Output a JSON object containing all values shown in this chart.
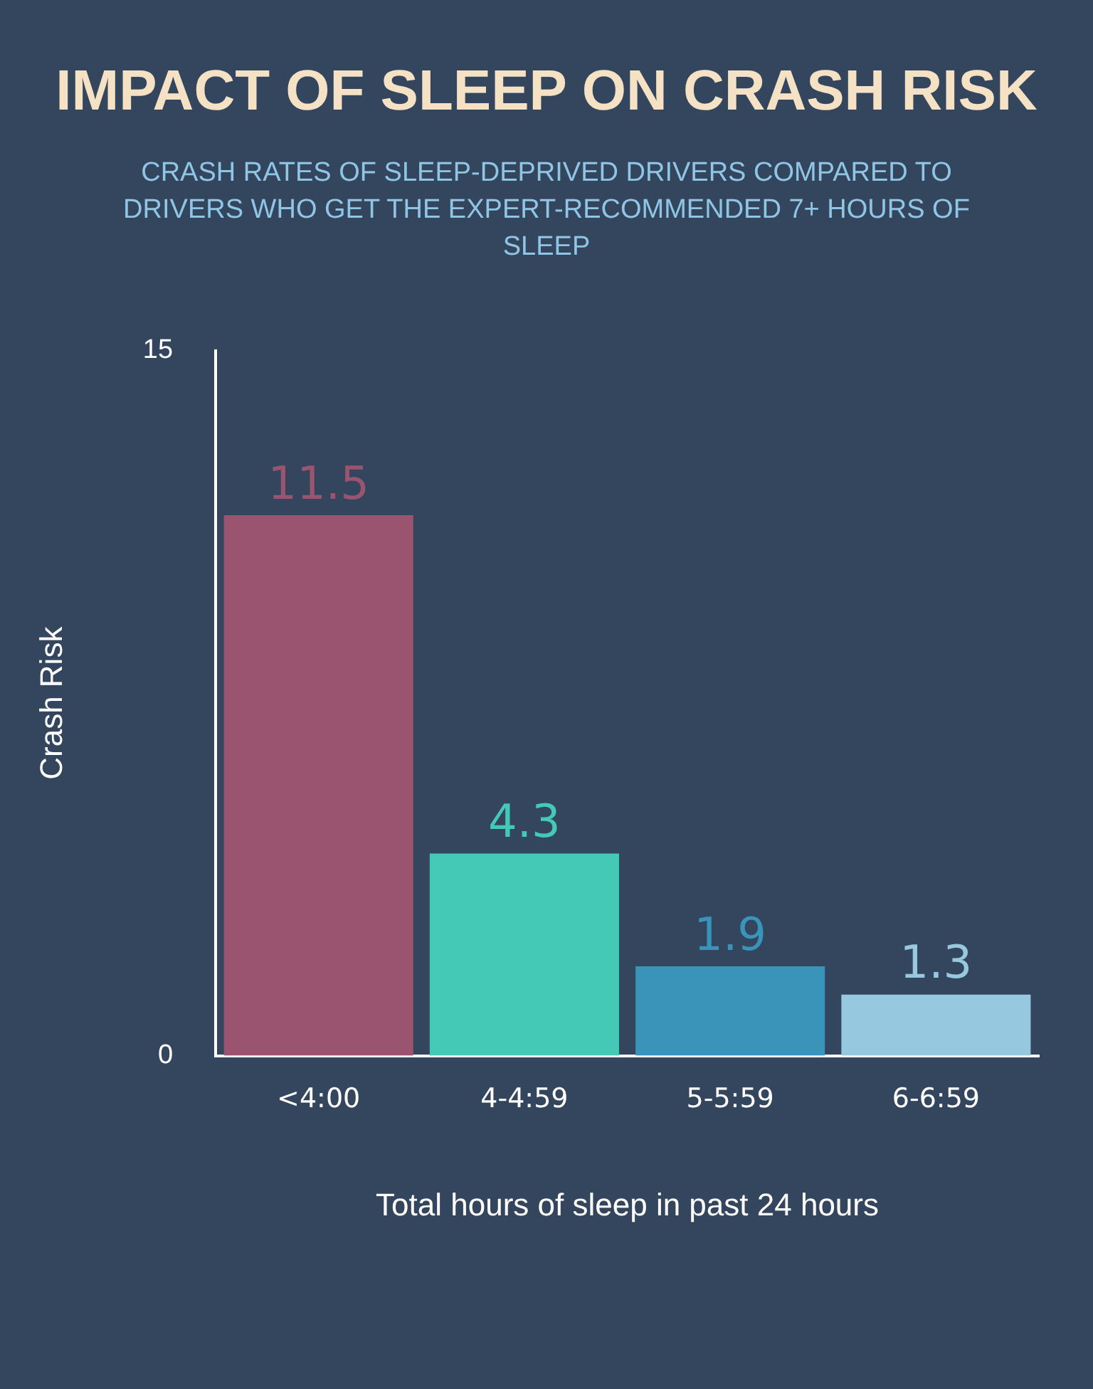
{
  "chart_data": {
    "type": "bar",
    "title": "IMPACT OF SLEEP ON CRASH RISK",
    "subtitle": "CRASH RATES OF SLEEP-DEPRIVED DRIVERS COMPARED TO DRIVERS WHO GET THE EXPERT-RECOMMENDED 7+ HOURS OF SLEEP",
    "xlabel": "Total hours of sleep in past 24 hours",
    "ylabel": "Crash Risk",
    "categories": [
      "<4:00",
      "4-4:59",
      "5-5:59",
      "6-6:59"
    ],
    "values": [
      11.5,
      4.3,
      1.9,
      1.3
    ],
    "colors": [
      "#9b5470",
      "#45c9b7",
      "#3a93b9",
      "#96c8df"
    ],
    "ylim": [
      0,
      15
    ],
    "yticks": [
      0,
      15
    ],
    "grid": false,
    "data_labels": true
  }
}
